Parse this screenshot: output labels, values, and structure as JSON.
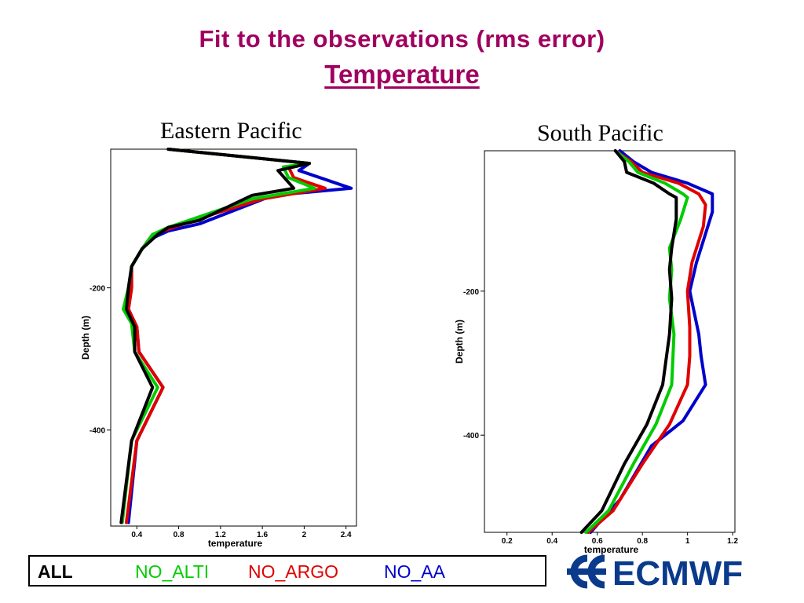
{
  "title": {
    "line1": "Fit to the observations  (rms error)",
    "line2": "Temperature"
  },
  "legend": {
    "items": [
      {
        "label": "ALL",
        "color": "#000000"
      },
      {
        "label": "NO_ALTI",
        "color": "#00cc00"
      },
      {
        "label": "NO_ARGO",
        "color": "#e00000"
      },
      {
        "label": "NO_AA",
        "color": "#0000cc"
      }
    ]
  },
  "logo": {
    "text": "ECMWF",
    "color": "#0a3a8c"
  },
  "chart_data": [
    {
      "type": "line",
      "title": "Eastern Pacific",
      "xlabel": "temperature",
      "ylabel": "Depth (m)",
      "xlim": [
        0.15,
        2.5
      ],
      "ylim": [
        -535,
        -5
      ],
      "xticks": [
        0.4,
        0.8,
        1.2,
        1.6,
        2,
        2.4
      ],
      "xtick_labels": [
        "0.4",
        "0.8",
        "1.2",
        "1.6",
        "2",
        "2.4"
      ],
      "yticks": [
        -200,
        -400
      ],
      "ytick_labels": [
        "-200",
        "-400"
      ],
      "series": [
        {
          "name": "ALL",
          "color": "#000000",
          "points": [
            [
              0.7,
              -5
            ],
            [
              2.05,
              -25
            ],
            [
              1.75,
              -35
            ],
            [
              1.9,
              -60
            ],
            [
              1.5,
              -70
            ],
            [
              1,
              -105
            ],
            [
              0.7,
              -115
            ],
            [
              0.6,
              -125
            ],
            [
              0.45,
              -145
            ],
            [
              0.35,
              -170
            ],
            [
              0.32,
              -200
            ],
            [
              0.3,
              -230
            ],
            [
              0.38,
              -255
            ],
            [
              0.38,
              -290
            ],
            [
              0.55,
              -340
            ],
            [
              0.35,
              -415
            ],
            [
              0.25,
              -530
            ]
          ]
        },
        {
          "name": "NO_ALTI",
          "color": "#00cc00",
          "points": [
            [
              0.7,
              -5
            ],
            [
              2.05,
              -25
            ],
            [
              1.8,
              -30
            ],
            [
              1.85,
              -45
            ],
            [
              2.1,
              -60
            ],
            [
              1.5,
              -75
            ],
            [
              1,
              -100
            ],
            [
              0.7,
              -115
            ],
            [
              0.55,
              -125
            ],
            [
              0.45,
              -145
            ],
            [
              0.35,
              -170
            ],
            [
              0.32,
              -200
            ],
            [
              0.27,
              -230
            ],
            [
              0.35,
              -250
            ],
            [
              0.38,
              -290
            ],
            [
              0.6,
              -340
            ],
            [
              0.35,
              -415
            ],
            [
              0.26,
              -530
            ]
          ]
        },
        {
          "name": "NO_ARGO",
          "color": "#e00000",
          "points": [
            [
              0.7,
              -5
            ],
            [
              2.05,
              -25
            ],
            [
              1.85,
              -30
            ],
            [
              1.9,
              -45
            ],
            [
              2.2,
              -60
            ],
            [
              1.6,
              -75
            ],
            [
              1.05,
              -100
            ],
            [
              0.75,
              -115
            ],
            [
              0.55,
              -125
            ],
            [
              0.45,
              -145
            ],
            [
              0.35,
              -170
            ],
            [
              0.35,
              -200
            ],
            [
              0.32,
              -230
            ],
            [
              0.4,
              -255
            ],
            [
              0.42,
              -290
            ],
            [
              0.65,
              -340
            ],
            [
              0.4,
              -415
            ],
            [
              0.3,
              -530
            ]
          ]
        },
        {
          "name": "NO_AA",
          "color": "#0000cc",
          "points": [
            [
              0.7,
              -5
            ],
            [
              2.05,
              -25
            ],
            [
              1.95,
              -35
            ],
            [
              2.45,
              -60
            ],
            [
              1.7,
              -70
            ],
            [
              1,
              -110
            ],
            [
              0.7,
              -120
            ],
            [
              0.55,
              -130
            ],
            [
              0.45,
              -145
            ],
            [
              0.35,
              -170
            ],
            [
              0.35,
              -200
            ],
            [
              0.32,
              -230
            ],
            [
              0.4,
              -255
            ],
            [
              0.42,
              -290
            ],
            [
              0.65,
              -340
            ],
            [
              0.4,
              -415
            ],
            [
              0.32,
              -530
            ]
          ]
        }
      ]
    },
    {
      "type": "line",
      "title": "South Pacific",
      "xlabel": "temperature",
      "ylabel": "Depth (m)",
      "xlim": [
        0.1,
        1.21
      ],
      "ylim": [
        -535,
        -5
      ],
      "xticks": [
        0.2,
        0.4,
        0.6,
        0.8,
        1,
        1.2
      ],
      "xtick_labels": [
        "0.2",
        "0.4",
        "0.6",
        "0.8",
        "1",
        "1.2"
      ],
      "yticks": [
        -200,
        -400
      ],
      "ytick_labels": [
        "-200",
        "-400"
      ],
      "series": [
        {
          "name": "ALL",
          "color": "#000000",
          "points": [
            [
              0.68,
              -5
            ],
            [
              0.72,
              -20
            ],
            [
              0.73,
              -35
            ],
            [
              0.85,
              -50
            ],
            [
              0.92,
              -65
            ],
            [
              0.95,
              -70
            ],
            [
              0.95,
              -100
            ],
            [
              0.93,
              -140
            ],
            [
              0.92,
              -170
            ],
            [
              0.93,
              -210
            ],
            [
              0.92,
              -260
            ],
            [
              0.89,
              -330
            ],
            [
              0.82,
              -385
            ],
            [
              0.72,
              -440
            ],
            [
              0.62,
              -505
            ],
            [
              0.53,
              -535
            ]
          ]
        },
        {
          "name": "NO_ALTI",
          "color": "#00cc00",
          "points": [
            [
              0.68,
              -5
            ],
            [
              0.74,
              -20
            ],
            [
              0.78,
              -35
            ],
            [
              0.9,
              -50
            ],
            [
              0.98,
              -65
            ],
            [
              1,
              -70
            ],
            [
              0.97,
              -100
            ],
            [
              0.92,
              -140
            ],
            [
              0.93,
              -170
            ],
            [
              0.92,
              -210
            ],
            [
              0.94,
              -260
            ],
            [
              0.93,
              -330
            ],
            [
              0.86,
              -385
            ],
            [
              0.76,
              -440
            ],
            [
              0.65,
              -505
            ],
            [
              0.55,
              -535
            ]
          ]
        },
        {
          "name": "NO_ARGO",
          "color": "#e00000",
          "points": [
            [
              0.68,
              -5
            ],
            [
              0.75,
              -20
            ],
            [
              0.8,
              -35
            ],
            [
              0.96,
              -50
            ],
            [
              1.05,
              -65
            ],
            [
              1.08,
              -80
            ],
            [
              1.07,
              -110
            ],
            [
              1.02,
              -160
            ],
            [
              1,
              -200
            ],
            [
              1.01,
              -250
            ],
            [
              1.01,
              -290
            ],
            [
              1,
              -330
            ],
            [
              0.92,
              -385
            ],
            [
              0.8,
              -440
            ],
            [
              0.67,
              -505
            ],
            [
              0.56,
              -535
            ]
          ]
        },
        {
          "name": "NO_AA",
          "color": "#0000cc",
          "points": [
            [
              0.7,
              -5
            ],
            [
              0.76,
              -20
            ],
            [
              0.84,
              -35
            ],
            [
              1,
              -50
            ],
            [
              1.11,
              -65
            ],
            [
              1.11,
              -90
            ],
            [
              1.07,
              -130
            ],
            [
              1.04,
              -160
            ],
            [
              1.01,
              -200
            ],
            [
              1.05,
              -260
            ],
            [
              1.06,
              -290
            ],
            [
              1.08,
              -330
            ],
            [
              0.98,
              -380
            ],
            [
              0.84,
              -415
            ],
            [
              0.7,
              -490
            ],
            [
              0.57,
              -535
            ]
          ]
        }
      ]
    }
  ]
}
